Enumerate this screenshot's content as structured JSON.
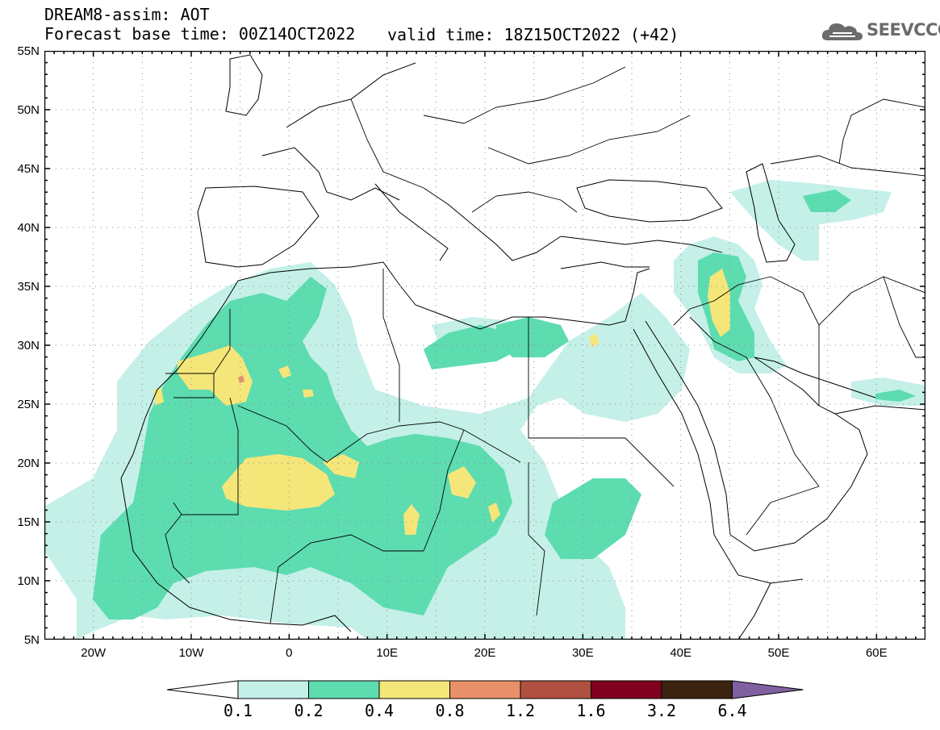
{
  "header": {
    "title": "DREAM8-assim: AOT",
    "base_time": "Forecast base time: 00Z14OCT2022",
    "valid_time": "valid time: 18Z15OCT2022 (+42)"
  },
  "logo": {
    "text": "SEEVCCC",
    "icon": "cloud-icon"
  },
  "map": {
    "lon_range": [
      -25,
      65
    ],
    "lat_range": [
      5,
      55
    ],
    "lon_ticks": [
      {
        "lon": -20,
        "label": "20W"
      },
      {
        "lon": -10,
        "label": "10W"
      },
      {
        "lon": 0,
        "label": "0"
      },
      {
        "lon": 10,
        "label": "10E"
      },
      {
        "lon": 20,
        "label": "20E"
      },
      {
        "lon": 30,
        "label": "30E"
      },
      {
        "lon": 40,
        "label": "40E"
      },
      {
        "lon": 50,
        "label": "50E"
      },
      {
        "lon": 60,
        "label": "60E"
      }
    ],
    "lat_ticks": [
      {
        "lat": 5,
        "label": "5N"
      },
      {
        "lat": 10,
        "label": "10N"
      },
      {
        "lat": 15,
        "label": "15N"
      },
      {
        "lat": 20,
        "label": "20N"
      },
      {
        "lat": 25,
        "label": "25N"
      },
      {
        "lat": 30,
        "label": "30N"
      },
      {
        "lat": 35,
        "label": "35N"
      },
      {
        "lat": 40,
        "label": "40N"
      },
      {
        "lat": 45,
        "label": "45N"
      },
      {
        "lat": 50,
        "label": "50N"
      },
      {
        "lat": 55,
        "label": "55N"
      }
    ],
    "gridlines": "dotted"
  },
  "legend": {
    "levels": [
      "0.1",
      "0.2",
      "0.4",
      "0.8",
      "1.2",
      "1.6",
      "3.2",
      "6.4"
    ],
    "colors": [
      "#ffffff",
      "#c4f0e8",
      "#5ddcb0",
      "#f5e67a",
      "#e8906a",
      "#b05040",
      "#800020",
      "#3a2410",
      "#8060a0"
    ]
  }
}
